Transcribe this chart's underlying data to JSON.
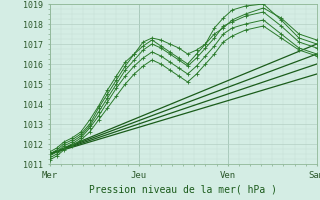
{
  "xlabel": "Pression niveau de la mer( hPa )",
  "background_color": "#d4ede4",
  "grid_minor_color": "#c2ddd4",
  "grid_major_color": "#b4cfc4",
  "line_color_dark": "#1a5c1a",
  "line_color_mid": "#2a7a2a",
  "ylim": [
    1011,
    1019
  ],
  "yticks": [
    1011,
    1012,
    1013,
    1014,
    1015,
    1016,
    1017,
    1018,
    1019
  ],
  "xlim_days": [
    0,
    3
  ],
  "day_labels": [
    "Mer",
    "Jeu",
    "Ven",
    "Sam"
  ],
  "day_positions": [
    0.0,
    1.0,
    2.0,
    3.0
  ],
  "wavy_lines": [
    {
      "x": [
        0.0,
        0.08,
        0.16,
        0.25,
        0.35,
        0.45,
        0.55,
        0.65,
        0.75,
        0.85,
        0.95,
        1.05,
        1.15,
        1.25,
        1.35,
        1.45,
        1.55,
        1.65,
        1.75,
        1.85,
        1.95,
        2.05,
        2.2,
        2.4,
        2.6,
        2.8,
        3.0
      ],
      "y": [
        1011.5,
        1011.7,
        1012.0,
        1012.2,
        1012.5,
        1013.0,
        1013.8,
        1014.5,
        1015.2,
        1015.9,
        1016.5,
        1017.1,
        1017.3,
        1017.2,
        1017.0,
        1016.8,
        1016.5,
        1016.7,
        1017.0,
        1017.5,
        1017.8,
        1018.2,
        1018.5,
        1018.8,
        1018.3,
        1017.5,
        1017.2
      ]
    },
    {
      "x": [
        0.0,
        0.08,
        0.16,
        0.25,
        0.35,
        0.45,
        0.55,
        0.65,
        0.75,
        0.85,
        0.95,
        1.05,
        1.15,
        1.25,
        1.35,
        1.45,
        1.55,
        1.65,
        1.75,
        1.85,
        1.95,
        2.05,
        2.2,
        2.4,
        2.6,
        2.8,
        3.0
      ],
      "y": [
        1011.6,
        1011.8,
        1012.1,
        1012.3,
        1012.6,
        1013.2,
        1013.9,
        1014.7,
        1015.4,
        1016.1,
        1016.5,
        1016.9,
        1017.2,
        1016.9,
        1016.6,
        1016.3,
        1016.0,
        1016.5,
        1017.0,
        1017.8,
        1018.3,
        1018.7,
        1018.9,
        1019.0,
        1018.2,
        1017.3,
        1017.0
      ]
    },
    {
      "x": [
        0.0,
        0.08,
        0.16,
        0.25,
        0.35,
        0.45,
        0.55,
        0.65,
        0.75,
        0.85,
        0.95,
        1.05,
        1.15,
        1.25,
        1.35,
        1.45,
        1.55,
        1.65,
        1.75,
        1.85,
        1.95,
        2.05,
        2.2,
        2.4,
        2.6,
        2.8,
        3.0
      ],
      "y": [
        1011.4,
        1011.6,
        1011.9,
        1012.1,
        1012.4,
        1012.9,
        1013.6,
        1014.3,
        1015.0,
        1015.7,
        1016.2,
        1016.7,
        1017.0,
        1016.8,
        1016.5,
        1016.2,
        1015.9,
        1016.3,
        1016.8,
        1017.3,
        1017.9,
        1018.1,
        1018.4,
        1018.6,
        1017.9,
        1017.1,
        1016.8
      ]
    },
    {
      "x": [
        0.0,
        0.08,
        0.16,
        0.25,
        0.35,
        0.45,
        0.55,
        0.65,
        0.75,
        0.85,
        0.95,
        1.05,
        1.15,
        1.25,
        1.35,
        1.45,
        1.55,
        1.65,
        1.75,
        1.85,
        1.95,
        2.05,
        2.2,
        2.4,
        2.6,
        2.8,
        3.0
      ],
      "y": [
        1011.3,
        1011.5,
        1011.8,
        1012.0,
        1012.3,
        1012.8,
        1013.4,
        1014.1,
        1014.8,
        1015.4,
        1015.9,
        1016.3,
        1016.6,
        1016.4,
        1016.1,
        1015.8,
        1015.5,
        1015.9,
        1016.4,
        1016.9,
        1017.5,
        1017.8,
        1018.0,
        1018.2,
        1017.5,
        1016.8,
        1016.5
      ]
    },
    {
      "x": [
        0.0,
        0.08,
        0.16,
        0.25,
        0.35,
        0.45,
        0.55,
        0.65,
        0.75,
        0.85,
        0.95,
        1.05,
        1.15,
        1.25,
        1.35,
        1.45,
        1.55,
        1.65,
        1.75,
        1.85,
        1.95,
        2.05,
        2.2,
        2.4,
        2.6,
        2.8,
        3.0
      ],
      "y": [
        1011.2,
        1011.4,
        1011.7,
        1011.9,
        1012.2,
        1012.6,
        1013.2,
        1013.8,
        1014.4,
        1015.0,
        1015.5,
        1015.9,
        1016.2,
        1016.0,
        1015.7,
        1015.4,
        1015.1,
        1015.5,
        1016.0,
        1016.5,
        1017.1,
        1017.4,
        1017.7,
        1017.9,
        1017.3,
        1016.7,
        1016.4
      ]
    }
  ],
  "straight_lines": [
    {
      "x": [
        0.0,
        3.0
      ],
      "y": [
        1011.5,
        1017.0
      ]
    },
    {
      "x": [
        0.0,
        3.0
      ],
      "y": [
        1011.5,
        1016.5
      ]
    },
    {
      "x": [
        0.0,
        3.0
      ],
      "y": [
        1011.5,
        1016.0
      ]
    },
    {
      "x": [
        0.0,
        3.0
      ],
      "y": [
        1011.5,
        1015.5
      ]
    }
  ]
}
